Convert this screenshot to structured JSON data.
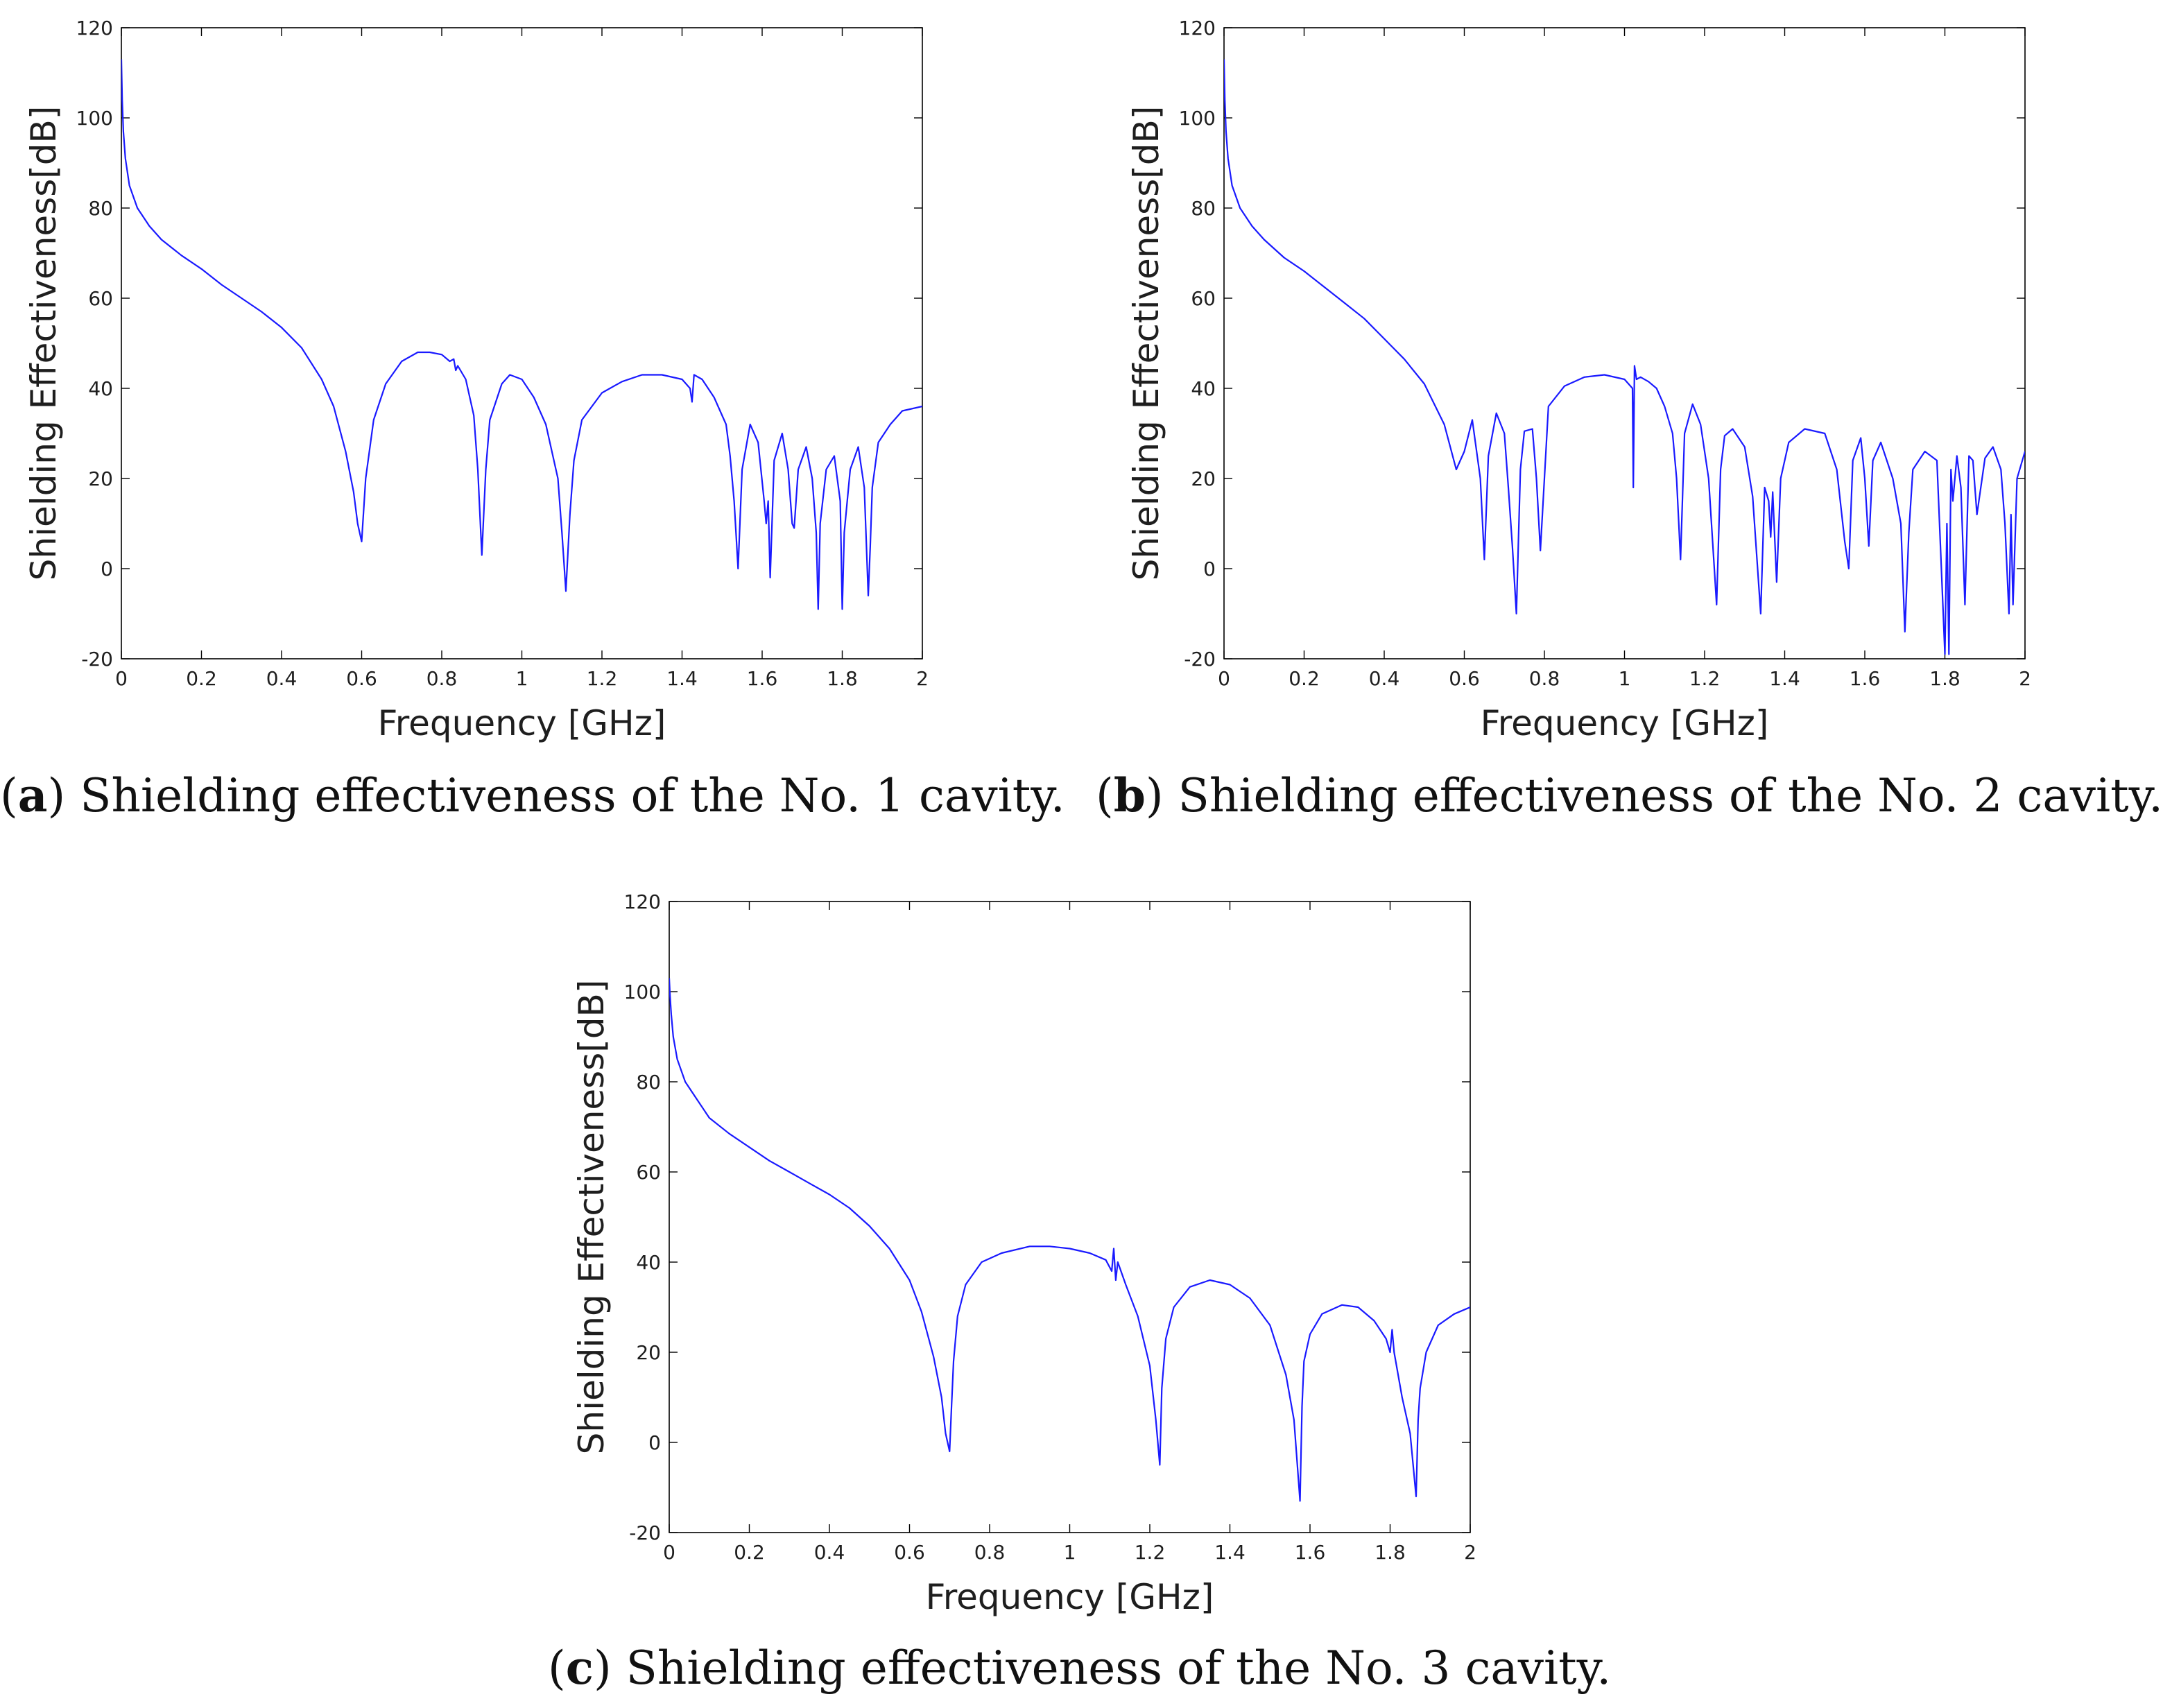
{
  "figure": {
    "captions": [
      {
        "letter": "a",
        "text": "Shielding effectiveness of the No. 1 cavity."
      },
      {
        "letter": "b",
        "text": "Shielding effectiveness of the No. 2 cavity."
      },
      {
        "letter": "c",
        "text": "Shielding effectiveness of the No. 3 cavity."
      }
    ]
  },
  "chart_data": [
    {
      "type": "line",
      "title": "",
      "xlabel": "Frequency [GHz]",
      "ylabel": "Shielding Effectiveness[dB]",
      "xlim": [
        0,
        2
      ],
      "ylim": [
        -20,
        120
      ],
      "xticks": [
        "0",
        "0.2",
        "0.4",
        "0.6",
        "0.8",
        "1",
        "1.2",
        "1.4",
        "1.6",
        "1.8",
        "2"
      ],
      "yticks": [
        "-20",
        "0",
        "20",
        "40",
        "60",
        "80",
        "100",
        "120"
      ],
      "grid": false,
      "line_color": "#1a1aff",
      "series": [
        {
          "name": "No. 1 cavity",
          "x": [
            0,
            0.002,
            0.005,
            0.01,
            0.02,
            0.04,
            0.07,
            0.1,
            0.15,
            0.2,
            0.25,
            0.3,
            0.35,
            0.4,
            0.45,
            0.5,
            0.53,
            0.56,
            0.58,
            0.59,
            0.6,
            0.61,
            0.63,
            0.66,
            0.7,
            0.74,
            0.77,
            0.8,
            0.82,
            0.83,
            0.835,
            0.84,
            0.86,
            0.88,
            0.89,
            0.9,
            0.91,
            0.92,
            0.95,
            0.97,
            1.0,
            1.03,
            1.06,
            1.09,
            1.1,
            1.11,
            1.12,
            1.13,
            1.15,
            1.2,
            1.25,
            1.3,
            1.35,
            1.4,
            1.42,
            1.425,
            1.43,
            1.45,
            1.48,
            1.51,
            1.52,
            1.53,
            1.54,
            1.55,
            1.57,
            1.59,
            1.605,
            1.61,
            1.615,
            1.62,
            1.63,
            1.65,
            1.665,
            1.675,
            1.68,
            1.69,
            1.71,
            1.725,
            1.735,
            1.74,
            1.745,
            1.76,
            1.78,
            1.795,
            1.8,
            1.805,
            1.82,
            1.84,
            1.855,
            1.865,
            1.87,
            1.875,
            1.89,
            1.92,
            1.95,
            2.0
          ],
          "values": [
            113,
            104,
            97,
            91,
            85,
            80,
            76,
            73,
            69.5,
            66.5,
            63,
            60,
            57,
            53.5,
            49,
            42,
            36,
            26,
            17,
            10,
            6,
            20,
            33,
            41,
            46,
            48,
            48,
            47.5,
            46,
            46.5,
            44,
            45,
            42,
            34,
            22,
            3,
            22,
            33,
            41,
            43,
            42,
            38,
            32,
            20,
            8,
            -5,
            12,
            24,
            33,
            39,
            41.5,
            43,
            43,
            42,
            40,
            37,
            43,
            42,
            38,
            32,
            25,
            15,
            0,
            22,
            32,
            28,
            15,
            10,
            15,
            -2,
            24,
            30,
            22,
            10,
            9,
            22,
            27,
            20,
            8,
            -9,
            10,
            22,
            25,
            15,
            -9,
            8,
            22,
            27,
            18,
            -6,
            5,
            18,
            28,
            32,
            35,
            36
          ]
        }
      ]
    },
    {
      "type": "line",
      "title": "",
      "xlabel": "Frequency [GHz]",
      "ylabel": "Shielding Effectiveness[dB]",
      "xlim": [
        0,
        2
      ],
      "ylim": [
        -20,
        120
      ],
      "xticks": [
        "0",
        "0.2",
        "0.4",
        "0.6",
        "0.8",
        "1",
        "1.2",
        "1.4",
        "1.6",
        "1.8",
        "2"
      ],
      "yticks": [
        "-20",
        "0",
        "20",
        "40",
        "60",
        "80",
        "100",
        "120"
      ],
      "grid": false,
      "line_color": "#1a1aff",
      "series": [
        {
          "name": "No. 2 cavity",
          "x": [
            0,
            0.002,
            0.005,
            0.01,
            0.02,
            0.04,
            0.07,
            0.1,
            0.15,
            0.2,
            0.25,
            0.3,
            0.35,
            0.4,
            0.45,
            0.5,
            0.55,
            0.58,
            0.6,
            0.62,
            0.64,
            0.65,
            0.66,
            0.68,
            0.7,
            0.71,
            0.72,
            0.73,
            0.74,
            0.75,
            0.77,
            0.78,
            0.79,
            0.81,
            0.85,
            0.9,
            0.95,
            1.0,
            1.02,
            1.022,
            1.025,
            1.03,
            1.04,
            1.06,
            1.08,
            1.1,
            1.12,
            1.13,
            1.14,
            1.15,
            1.17,
            1.19,
            1.21,
            1.23,
            1.24,
            1.25,
            1.27,
            1.3,
            1.32,
            1.34,
            1.35,
            1.36,
            1.365,
            1.37,
            1.38,
            1.39,
            1.41,
            1.45,
            1.5,
            1.53,
            1.55,
            1.56,
            1.57,
            1.59,
            1.6,
            1.61,
            1.62,
            1.64,
            1.67,
            1.69,
            1.7,
            1.71,
            1.72,
            1.75,
            1.78,
            1.8,
            1.805,
            1.81,
            1.815,
            1.82,
            1.83,
            1.84,
            1.85,
            1.86,
            1.87,
            1.88,
            1.9,
            1.92,
            1.94,
            1.95,
            1.96,
            1.965,
            1.97,
            1.98,
            2.0
          ],
          "values": [
            113,
            104,
            97,
            91,
            85,
            80,
            76,
            73,
            69,
            66,
            62.5,
            59,
            55.5,
            51,
            46.5,
            41,
            32,
            22,
            26,
            33,
            20,
            2,
            25,
            34.5,
            30,
            18,
            5,
            -10,
            22,
            30.5,
            31,
            20,
            4,
            36,
            40.5,
            42.5,
            43,
            42,
            40,
            18,
            45,
            42,
            42.5,
            41.5,
            40,
            36,
            30,
            20,
            2,
            30,
            36.5,
            32,
            20,
            -8,
            22,
            29.5,
            31,
            27,
            16,
            -10,
            18,
            15,
            7,
            17,
            -3,
            20,
            28,
            31,
            30,
            22,
            6,
            0,
            24,
            29,
            20,
            5,
            24,
            28,
            20,
            10,
            -14,
            8,
            22,
            26,
            24,
            -19,
            10,
            -19,
            22,
            15,
            25,
            18,
            -8,
            25,
            24,
            12,
            24.5,
            27,
            22,
            10,
            -10,
            12,
            -8,
            20,
            26
          ]
        }
      ]
    },
    {
      "type": "line",
      "title": "",
      "xlabel": "Frequency [GHz]",
      "ylabel": "Shielding Effectiveness[dB]",
      "xlim": [
        0,
        2
      ],
      "ylim": [
        -20,
        120
      ],
      "xticks": [
        "0",
        "0.2",
        "0.4",
        "0.6",
        "0.8",
        "1",
        "1.2",
        "1.4",
        "1.6",
        "1.8",
        "2"
      ],
      "yticks": [
        "-20",
        "0",
        "20",
        "40",
        "60",
        "80",
        "100",
        "120"
      ],
      "grid": false,
      "line_color": "#1a1aff",
      "series": [
        {
          "name": "No. 3 cavity",
          "x": [
            0,
            0.002,
            0.005,
            0.01,
            0.02,
            0.04,
            0.07,
            0.1,
            0.15,
            0.2,
            0.25,
            0.3,
            0.35,
            0.4,
            0.45,
            0.5,
            0.55,
            0.6,
            0.63,
            0.66,
            0.68,
            0.69,
            0.7,
            0.705,
            0.71,
            0.72,
            0.74,
            0.78,
            0.83,
            0.9,
            0.95,
            1.0,
            1.05,
            1.09,
            1.105,
            1.11,
            1.115,
            1.12,
            1.14,
            1.17,
            1.2,
            1.215,
            1.225,
            1.23,
            1.24,
            1.26,
            1.3,
            1.35,
            1.4,
            1.45,
            1.5,
            1.54,
            1.56,
            1.575,
            1.58,
            1.585,
            1.6,
            1.63,
            1.68,
            1.72,
            1.76,
            1.79,
            1.8,
            1.805,
            1.81,
            1.83,
            1.85,
            1.865,
            1.87,
            1.875,
            1.89,
            1.92,
            1.96,
            2.0
          ],
          "values": [
            103,
            99,
            95,
            90,
            85,
            80,
            76,
            72,
            68.5,
            65.5,
            62.5,
            60,
            57.5,
            55,
            52,
            48,
            43,
            36,
            29,
            19,
            10,
            2,
            -2,
            8,
            18,
            28,
            35,
            40,
            42,
            43.5,
            43.5,
            43,
            42,
            40.5,
            38,
            43,
            36,
            40,
            35,
            28,
            17,
            5,
            -5,
            12,
            23,
            30,
            34.5,
            36,
            35,
            32,
            26,
            15,
            5,
            -13,
            8,
            18,
            24,
            28.5,
            30.5,
            30,
            27,
            23,
            20,
            25,
            20,
            10,
            2,
            -12,
            5,
            12,
            20,
            26,
            28.5,
            30
          ]
        }
      ]
    }
  ]
}
